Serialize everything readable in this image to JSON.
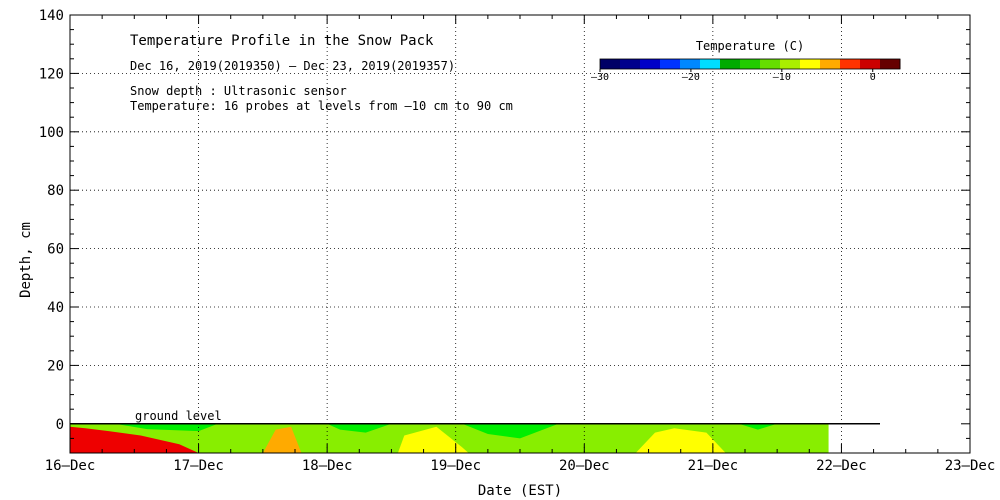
{
  "chart_data": {
    "type": "heatmap",
    "title": "Temperature Profile in the Snow Pack",
    "subtitle": "Dec 16, 2019(2019350) – Dec 23, 2019(2019357)",
    "annotations": [
      "Snow depth : Ultrasonic sensor",
      "Temperature: 16 probes at levels from –10 cm to 90 cm"
    ],
    "ground_label": "ground level",
    "xlabel": "Date (EST)",
    "ylabel": "Depth, cm",
    "x_ticks": [
      "16–Dec",
      "17–Dec",
      "18–Dec",
      "19–Dec",
      "20–Dec",
      "21–Dec",
      "22–Dec",
      "23–Dec"
    ],
    "xlim_days": [
      0,
      7
    ],
    "ylim": [
      -10,
      140
    ],
    "y_ticks": [
      -10,
      0,
      20,
      40,
      60,
      80,
      100,
      120,
      140
    ],
    "y_tick_labels": [
      "",
      "0",
      "20",
      "40",
      "60",
      "80",
      "100",
      "120",
      "140"
    ],
    "grid": true,
    "colorbar": {
      "title": "Temperature (C)",
      "range": [
        -30,
        3
      ],
      "tick_values": [
        -30,
        -20,
        -10,
        0
      ],
      "tick_labels": [
        "–30",
        "–20",
        "–10",
        "0"
      ],
      "colors": [
        "#000066",
        "#00008c",
        "#0000c8",
        "#0033ff",
        "#0088ff",
        "#00ddff",
        "#00aa00",
        "#22cc00",
        "#66dd00",
        "#aaee00",
        "#ffff00",
        "#ffaa00",
        "#ff3300",
        "#cc0000",
        "#660000"
      ]
    },
    "data_extent_days": [
      0,
      5.9
    ],
    "ground_line_extent_days": [
      0,
      6.3
    ],
    "bands": [
      {
        "color": "#ee0000",
        "points": [
          [
            0,
            -1
          ],
          [
            0.12,
            -1.5
          ],
          [
            0.3,
            -2.5
          ],
          [
            0.55,
            -4
          ],
          [
            0.7,
            -5.5
          ],
          [
            0.85,
            -7
          ],
          [
            1.0,
            -10
          ],
          [
            0,
            -10
          ]
        ]
      },
      {
        "color": "#ffaa00",
        "points": [
          [
            1.5,
            -10
          ],
          [
            1.6,
            -2
          ],
          [
            1.72,
            -1
          ],
          [
            1.8,
            -10
          ]
        ]
      },
      {
        "color": "#ffff00",
        "points": [
          [
            2.55,
            -10
          ],
          [
            2.6,
            -4
          ],
          [
            2.85,
            -1
          ],
          [
            3.05,
            -8
          ],
          [
            3.1,
            -10
          ]
        ]
      },
      {
        "color": "#ffff00",
        "points": [
          [
            4.4,
            -10
          ],
          [
            4.55,
            -3
          ],
          [
            4.7,
            -1.5
          ],
          [
            4.95,
            -3
          ],
          [
            5.1,
            -10
          ]
        ]
      },
      {
        "color": "#00ee00",
        "points": [
          [
            0.35,
            0
          ],
          [
            1.15,
            0
          ],
          [
            1.0,
            -2.5
          ],
          [
            0.6,
            -1.8
          ]
        ]
      },
      {
        "color": "#00ee00",
        "points": [
          [
            2.0,
            0
          ],
          [
            2.5,
            0
          ],
          [
            2.3,
            -3
          ],
          [
            2.1,
            -2
          ]
        ]
      },
      {
        "color": "#00ee00",
        "points": [
          [
            3.05,
            0
          ],
          [
            3.8,
            0
          ],
          [
            3.5,
            -5
          ],
          [
            3.25,
            -3.5
          ]
        ]
      },
      {
        "color": "#00ee00",
        "points": [
          [
            5.2,
            0
          ],
          [
            5.5,
            0
          ],
          [
            5.35,
            -2
          ]
        ]
      }
    ],
    "base_band_color": "#88ee00"
  }
}
